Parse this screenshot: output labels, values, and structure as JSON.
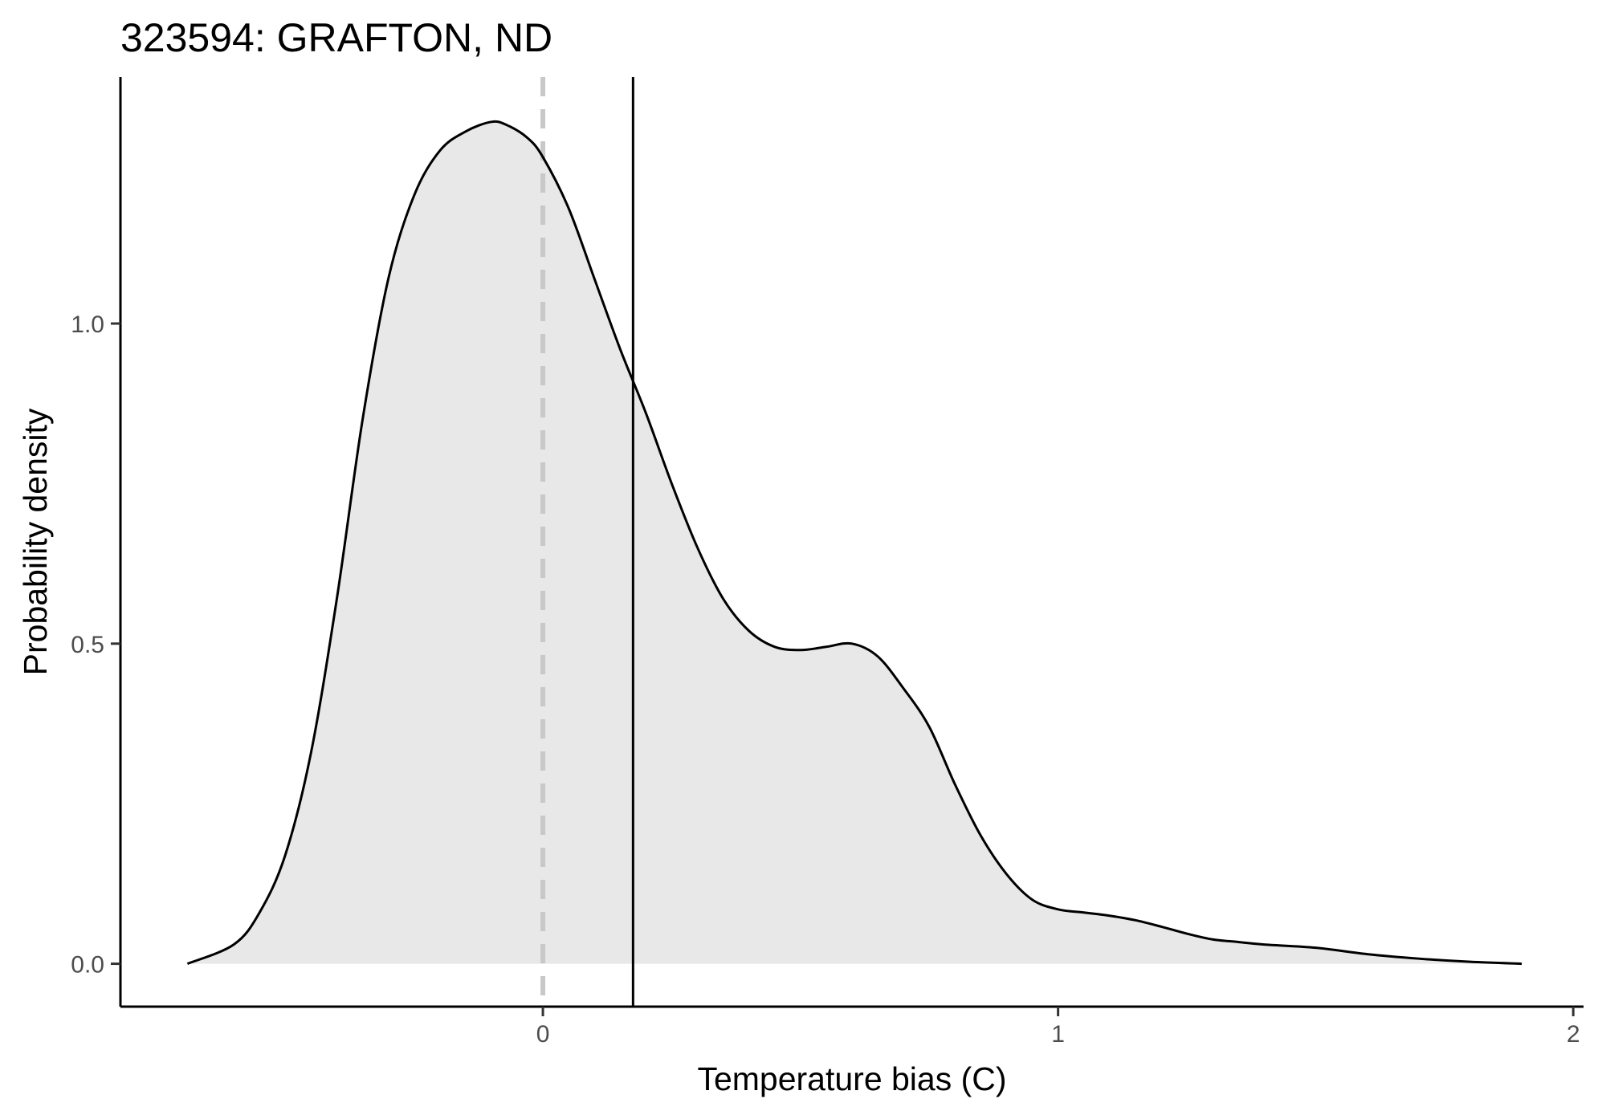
{
  "chart_data": {
    "type": "area",
    "title": "323594: GRAFTON, ND",
    "xlabel": "Temperature bias (C)",
    "ylabel": "Probability density",
    "xlim": [
      -0.82,
      2.02
    ],
    "ylim": [
      -0.067,
      1.385
    ],
    "x_ticks": [
      0,
      1,
      2
    ],
    "x_tick_labels": [
      "0",
      "1",
      "2"
    ],
    "y_ticks": [
      0.0,
      0.5,
      1.0
    ],
    "y_tick_labels": [
      "0.0",
      "0.5",
      "1.0"
    ],
    "grid": false,
    "legend": "none",
    "reference_lines": [
      {
        "x": 0,
        "style": "dashed",
        "color": "#c8c8c8"
      },
      {
        "x": 0.175,
        "style": "solid",
        "color": "#000000"
      }
    ],
    "fill_color": "#e8e8e8",
    "line_color": "#000000",
    "x": [
      -0.69,
      -0.6,
      -0.55,
      -0.5,
      -0.45,
      -0.4,
      -0.35,
      -0.3,
      -0.25,
      -0.2,
      -0.15,
      -0.1,
      -0.07,
      -0.03,
      0.0,
      0.05,
      0.1,
      0.15,
      0.2,
      0.25,
      0.3,
      0.35,
      0.4,
      0.45,
      0.5,
      0.55,
      0.6,
      0.65,
      0.7,
      0.75,
      0.8,
      0.85,
      0.9,
      0.95,
      1.0,
      1.05,
      1.1,
      1.15,
      1.2,
      1.25,
      1.3,
      1.35,
      1.4,
      1.5,
      1.6,
      1.7,
      1.8,
      1.9
    ],
    "values": [
      0.0,
      0.03,
      0.08,
      0.17,
      0.33,
      0.57,
      0.85,
      1.07,
      1.2,
      1.27,
      1.3,
      1.315,
      1.31,
      1.29,
      1.26,
      1.18,
      1.07,
      0.96,
      0.86,
      0.75,
      0.65,
      0.57,
      0.52,
      0.495,
      0.49,
      0.495,
      0.5,
      0.48,
      0.43,
      0.37,
      0.28,
      0.2,
      0.14,
      0.1,
      0.085,
      0.08,
      0.075,
      0.068,
      0.058,
      0.047,
      0.038,
      0.034,
      0.03,
      0.025,
      0.015,
      0.008,
      0.003,
      0.0
    ]
  }
}
